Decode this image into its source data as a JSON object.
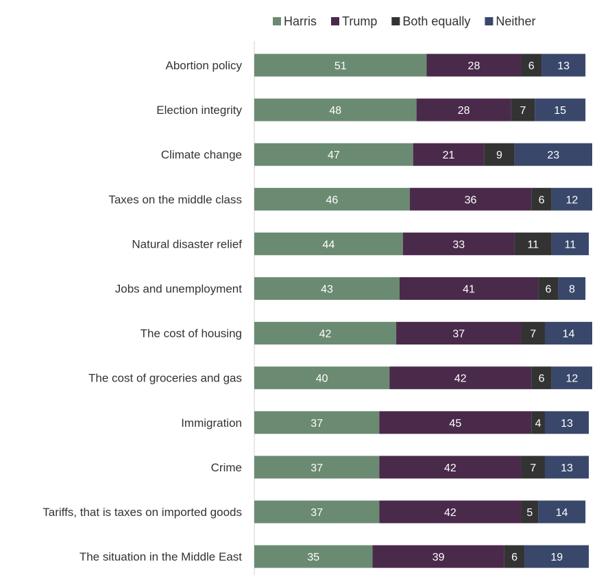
{
  "chart_data": {
    "type": "bar",
    "orientation": "horizontal",
    "stacked": true,
    "title": "",
    "xlabel": "",
    "ylabel": "",
    "xlim": [
      0,
      100
    ],
    "grid": false,
    "legend_position": "top",
    "categories": [
      "Abortion policy",
      "Election integrity",
      "Climate change",
      "Taxes on the middle class",
      "Natural disaster relief",
      "Jobs and unemployment",
      "The cost of housing",
      "The cost of groceries and gas",
      "Immigration",
      "Crime",
      "Tariffs, that is taxes on imported goods",
      "The situation in the Middle East"
    ],
    "series": [
      {
        "name": "Harris",
        "color": "#6b8a72",
        "values": [
          51,
          48,
          47,
          46,
          44,
          43,
          42,
          40,
          37,
          37,
          37,
          35
        ]
      },
      {
        "name": "Trump",
        "color": "#4a2a4a",
        "values": [
          28,
          28,
          21,
          36,
          33,
          41,
          37,
          42,
          45,
          42,
          42,
          39
        ]
      },
      {
        "name": "Both equally",
        "color": "#333333",
        "values": [
          6,
          7,
          9,
          6,
          11,
          6,
          7,
          6,
          4,
          7,
          5,
          6
        ]
      },
      {
        "name": "Neither",
        "color": "#39476a",
        "values": [
          13,
          15,
          23,
          12,
          11,
          8,
          14,
          12,
          13,
          13,
          14,
          19
        ]
      }
    ]
  }
}
